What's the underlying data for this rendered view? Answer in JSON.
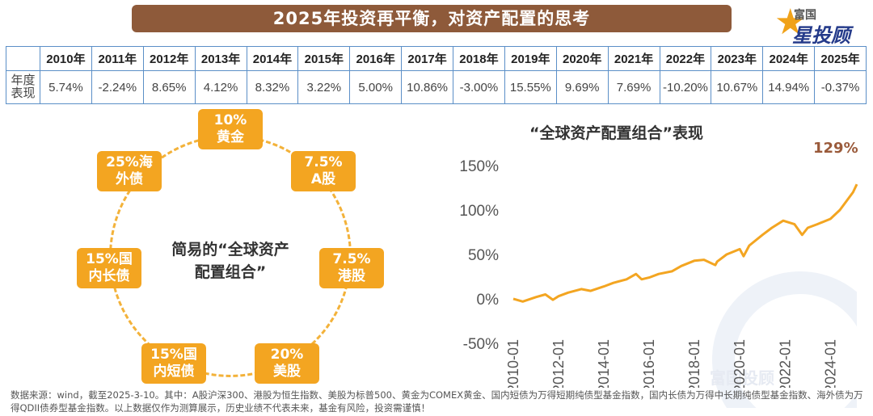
{
  "header": {
    "title": "2025年投资再平衡，对资产配置的思考",
    "brand_small": "富国",
    "brand_big": "投顾",
    "brand_big_prefix": "星"
  },
  "table": {
    "years": [
      "2010年",
      "2011年",
      "2012年",
      "2013年",
      "2014年",
      "2015年",
      "2016年",
      "2017年",
      "2018年",
      "2019年",
      "2020年",
      "2021年",
      "2022年",
      "2023年",
      "2024年",
      "2025年"
    ],
    "row_label": "年度\n表现",
    "values": [
      "5.74%",
      "-2.24%",
      "8.65%",
      "4.12%",
      "8.32%",
      "3.22%",
      "5.00%",
      "10.86%",
      "-3.00%",
      "15.55%",
      "9.69%",
      "7.69%",
      "-10.20%",
      "10.67%",
      "14.94%",
      "-0.37%"
    ]
  },
  "diagram": {
    "center": "简易的“全球资产配置组合”",
    "nodes": [
      {
        "pct": "10%",
        "name": "黄金"
      },
      {
        "pct": "7.5%",
        "name": "A股"
      },
      {
        "pct": "7.5%",
        "name": "港股"
      },
      {
        "pct": "20%",
        "name": "美股"
      },
      {
        "pct": "15%国",
        "name": "内短债"
      },
      {
        "pct": "15%国",
        "name": "内长债"
      },
      {
        "pct": "25%海",
        "name": "外债"
      }
    ],
    "colors": {
      "node": "#f3a521",
      "ring": "#f3b23a"
    }
  },
  "chart_data": {
    "type": "line",
    "title": "“全球资产配置组合”表现",
    "final_label": "129%",
    "y_ticks": [
      "150%",
      "100%",
      "50%",
      "0%",
      "-50%"
    ],
    "ylim": [
      -50,
      150
    ],
    "x_ticks": [
      "2010-01",
      "2012-01",
      "2014-01",
      "2016-01",
      "2018-01",
      "2020-01",
      "2022-01",
      "2024-01"
    ],
    "series": [
      {
        "color": "#f3a521",
        "points": [
          [
            "2010-01",
            0
          ],
          [
            "2010-06",
            -3
          ],
          [
            "2011-01",
            2
          ],
          [
            "2011-06",
            5
          ],
          [
            "2011-10",
            -1
          ],
          [
            "2012-01",
            3
          ],
          [
            "2012-06",
            7
          ],
          [
            "2013-01",
            11
          ],
          [
            "2013-06",
            9
          ],
          [
            "2014-01",
            14
          ],
          [
            "2014-06",
            18
          ],
          [
            "2015-01",
            22
          ],
          [
            "2015-06",
            28
          ],
          [
            "2015-09",
            22
          ],
          [
            "2016-01",
            24
          ],
          [
            "2016-06",
            28
          ],
          [
            "2017-01",
            31
          ],
          [
            "2017-06",
            37
          ],
          [
            "2018-01",
            43
          ],
          [
            "2018-06",
            44
          ],
          [
            "2018-12",
            38
          ],
          [
            "2019-01",
            42
          ],
          [
            "2019-06",
            50
          ],
          [
            "2020-01",
            56
          ],
          [
            "2020-03",
            48
          ],
          [
            "2020-06",
            60
          ],
          [
            "2021-01",
            72
          ],
          [
            "2021-06",
            80
          ],
          [
            "2021-12",
            88
          ],
          [
            "2022-06",
            84
          ],
          [
            "2022-10",
            72
          ],
          [
            "2023-01",
            80
          ],
          [
            "2023-06",
            84
          ],
          [
            "2024-01",
            90
          ],
          [
            "2024-06",
            100
          ],
          [
            "2025-01",
            120
          ],
          [
            "2025-03",
            129
          ]
        ]
      }
    ]
  },
  "footnote": "数据来源：wind，截至2025-3-10。其中：A股沪深300、港股为恒生指数、美股为标普500、黄金为COMEX黄金、国内短债为万得短期纯债型基金指数，国内长债为万得中长期纯债型基金指数、海外债为万得QDII债券型基金指数。以上数据仅作为测算展示，历史业绩不代表未来，基金有风险，投资需谨慎！",
  "watermark_text": "富国投顾"
}
